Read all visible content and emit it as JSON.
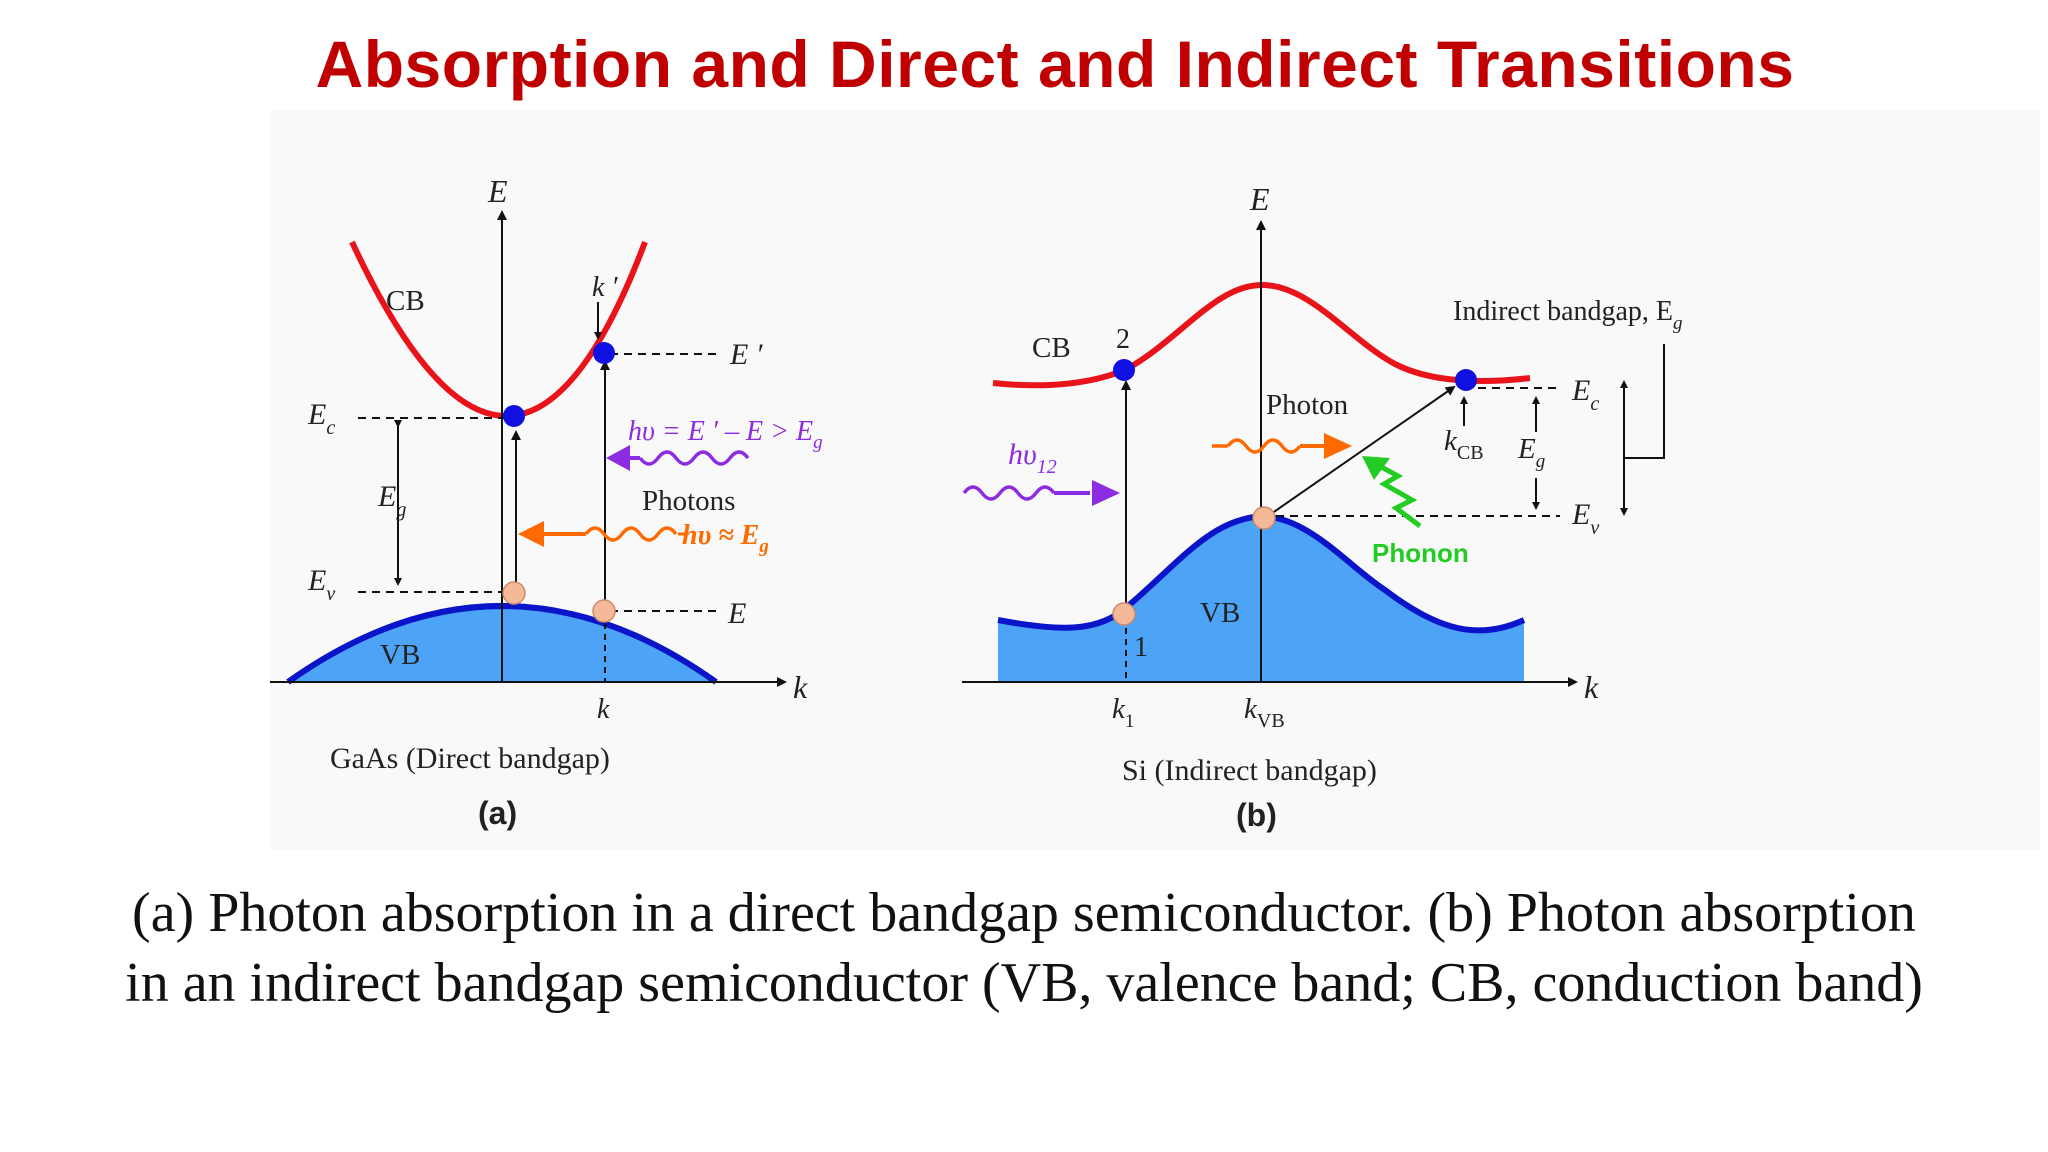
{
  "title": "Absorption and Direct and Indirect Transitions",
  "colors": {
    "title": "#c00000",
    "band_line_cb": "#e8141a",
    "band_line_vb": "#0a14c8",
    "band_fill_vb": "#4da3f5",
    "electron": "#1010e0",
    "hole": "#f5b99a",
    "photon_purple": "#8b2be2",
    "photon_orange": "#ff6a00",
    "phonon_green": "#22cc22"
  },
  "panel_a": {
    "axis_e": "E",
    "axis_k": "k",
    "cb": "CB",
    "vb": "VB",
    "ec": "E",
    "ec_sub": "c",
    "ev": "E",
    "ev_sub": "v",
    "eg": "E",
    "eg_sub": "g",
    "e_prime": "E ′",
    "e_level": "E",
    "k_prime": "k ′",
    "k_tick": "k",
    "photon_eq_1": "hυ = E ′ – E > E",
    "photon_eq_1_sub": "g",
    "photons": "Photons",
    "photon_eq_2": "hυ ≈ E",
    "photon_eq_2_sub": "g",
    "material": "GaAs (Direct bandgap)",
    "label": "(a)"
  },
  "panel_b": {
    "axis_e": "E",
    "axis_k": "k",
    "cb": "CB",
    "vb": "VB",
    "point_2": "2",
    "point_1": "1",
    "hv12": "hυ",
    "hv12_sub": "12",
    "photon": "Photon",
    "phonon": "Phonon",
    "indirect_bandgap": "Indirect bandgap, E",
    "indirect_bandgap_sub": "g",
    "ec": "E",
    "ec_sub": "c",
    "ev": "E",
    "ev_sub": "v",
    "eg": "E",
    "eg_sub": "g",
    "kcb": "k",
    "kcb_sub": "CB",
    "k1": "k",
    "k1_sub": "1",
    "kvb": "k",
    "kvb_sub": "VB",
    "material": "Si (Indirect bandgap)",
    "label": "(b)"
  },
  "caption": {
    "line1": "(a) Photon absorption in a direct bandgap semiconductor. (b) Photon absorption",
    "line2": "in an indirect bandgap semiconductor (VB, valence band; CB, conduction band)"
  }
}
